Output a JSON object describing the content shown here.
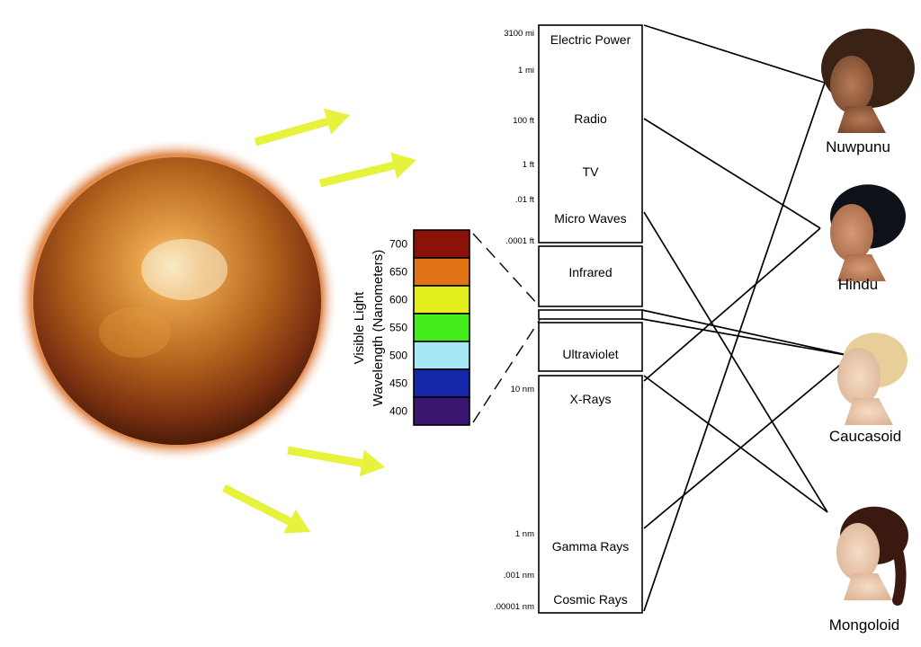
{
  "spectrum": {
    "bands": [
      {
        "id": "electric-power",
        "label": "Electric Power"
      },
      {
        "id": "radio",
        "label": "Radio"
      },
      {
        "id": "tv",
        "label": "TV"
      },
      {
        "id": "micro-waves",
        "label": "Micro Waves"
      },
      {
        "id": "infrared",
        "label": "Infrared"
      },
      {
        "id": "visible",
        "label": ""
      },
      {
        "id": "ultraviolet",
        "label": "Ultraviolet"
      },
      {
        "id": "x-rays",
        "label": "X-Rays"
      },
      {
        "id": "gamma-rays",
        "label": "Gamma Rays"
      },
      {
        "id": "cosmic-rays",
        "label": "Cosmic Rays"
      }
    ],
    "scale_labels": [
      "3100 mi",
      "1 mi",
      "100 ft",
      "1 ft",
      ".01 ft",
      ".0001 ft",
      "10 nm",
      "1 nm",
      ".001 nm",
      ".00001 nm"
    ]
  },
  "visible_light": {
    "title_line1": "Visible Light",
    "title_line2": "Wavelength (Nanometers)",
    "swatches": [
      {
        "nm": "700",
        "color": "#8b1208"
      },
      {
        "nm": "650",
        "color": "#e07414"
      },
      {
        "nm": "600",
        "color": "#e4ee1c"
      },
      {
        "nm": "550",
        "color": "#44ee1a"
      },
      {
        "nm": "500",
        "color": "#a6e8f4"
      },
      {
        "nm": "450",
        "color": "#1428a8"
      },
      {
        "nm": "400",
        "color": "#3a1670"
      }
    ]
  },
  "people": [
    {
      "id": "nuwpunu",
      "label": "Nuwpunu"
    },
    {
      "id": "hindu",
      "label": "Hindu"
    },
    {
      "id": "caucasoid",
      "label": "Caucasoid"
    },
    {
      "id": "mongoloid",
      "label": "Mongoloid"
    }
  ],
  "connections": [
    {
      "band": "electric-power",
      "person": "nuwpunu"
    },
    {
      "band": "radio",
      "person": "hindu"
    },
    {
      "band": "micro-waves",
      "person": "mongoloid"
    },
    {
      "band": "visible",
      "person": "caucasoid"
    },
    {
      "band": "visible",
      "person": "caucasoid"
    },
    {
      "band": "ultraviolet",
      "person": "hindu"
    },
    {
      "band": "x-rays",
      "person": "mongoloid"
    },
    {
      "band": "cosmic-rays",
      "person": "nuwpunu"
    },
    {
      "band": "gamma-rays",
      "person": "caucasoid"
    }
  ],
  "colors": {
    "arrow": "#e6f23c",
    "sun_core": "#b0601c",
    "sun_edge": "#4a1c08",
    "sun_glow": "#f2b31c"
  },
  "icons": {
    "sun": "sun-illustration",
    "arrows": "radiation-arrow-icon",
    "people": "person-portrait-icon"
  }
}
